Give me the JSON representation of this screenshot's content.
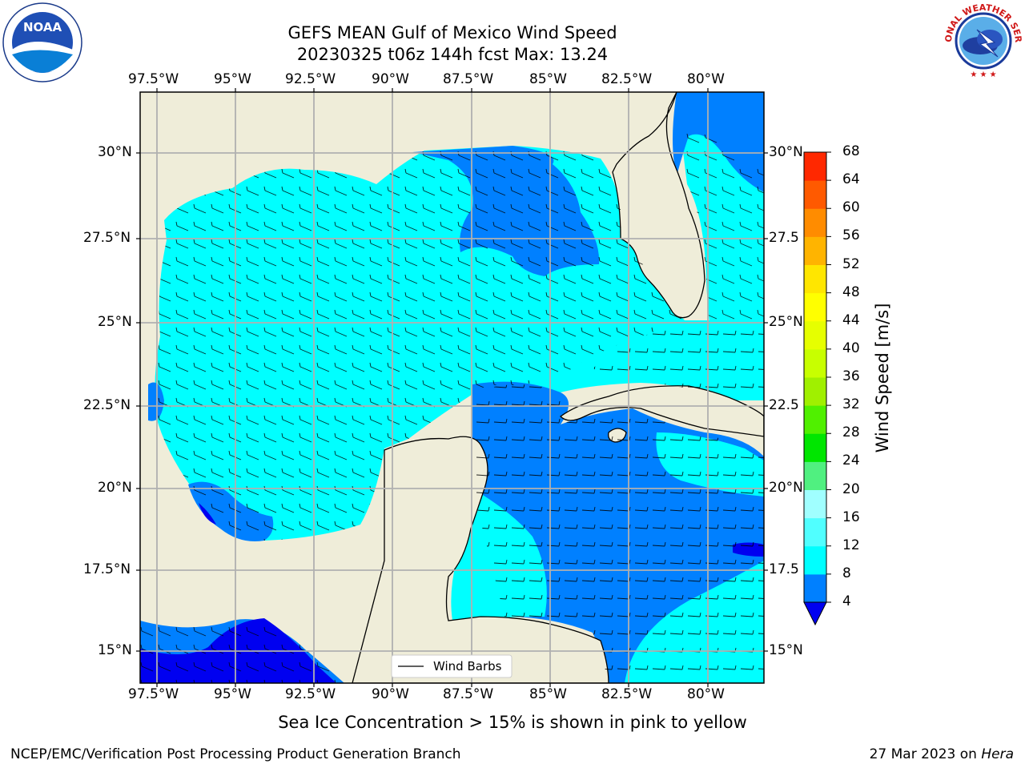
{
  "title": {
    "line1": "GEFS MEAN Gulf of Mexico Wind Speed",
    "line2": "20230325 t06z 144h fcst   Max: 13.24"
  },
  "map": {
    "lon_ticks": [
      "97.5°W",
      "95°W",
      "92.5°W",
      "90°W",
      "87.5°W",
      "85°W",
      "82.5°W",
      "80°W"
    ],
    "lat_ticks": [
      "30°N",
      "27.5°N",
      "25°N",
      "22.5°N",
      "20°N",
      "17.5°N",
      "15°N"
    ],
    "right_lat_ticks": [
      "30°N",
      "27.5",
      "25°N",
      "22.5",
      "20°N",
      "17.5",
      "15°N"
    ],
    "legend_label": "Wind Barbs",
    "colors": {
      "land": "#efedd9",
      "ocean_8_12": "#00ffff",
      "ocean_4_8": "#0080ff",
      "ocean_0_4": "#0000f0",
      "grid": "#b0b0b0"
    }
  },
  "colorbar": {
    "label": "Wind Speed [m/s]",
    "ticks": [
      "68",
      "64",
      "60",
      "56",
      "52",
      "48",
      "44",
      "40",
      "36",
      "32",
      "28",
      "24",
      "20",
      "16",
      "12",
      "8",
      "4"
    ],
    "colors": [
      "#0000f0",
      "#0080ff",
      "#00ffff",
      "#50ffff",
      "#a0ffff",
      "#50f080",
      "#00e600",
      "#50f000",
      "#a0f000",
      "#c8ff00",
      "#e6ff00",
      "#ffff00",
      "#ffe600",
      "#ffb400",
      "#ff8c00",
      "#ff5a00",
      "#ff2800",
      "#ff0000"
    ]
  },
  "notes": {
    "sea_ice": "Sea Ice Concentration > 15% is shown in pink to yellow",
    "footer_left": "NCEP/EMC/Verification Post Processing Product Generation Branch",
    "footer_date": "27 Mar 2023 on ",
    "footer_machine": "Hera"
  },
  "logos": {
    "noaa_text": "NOAA",
    "noaa_ring": "NATIONAL OCEANIC AND ATMOSPHERIC ADMINISTRATION",
    "noaa_ring_bottom": "U.S. DEPARTMENT OF COMMERCE",
    "nws_ring": "NATIONAL WEATHER SERVICE"
  }
}
